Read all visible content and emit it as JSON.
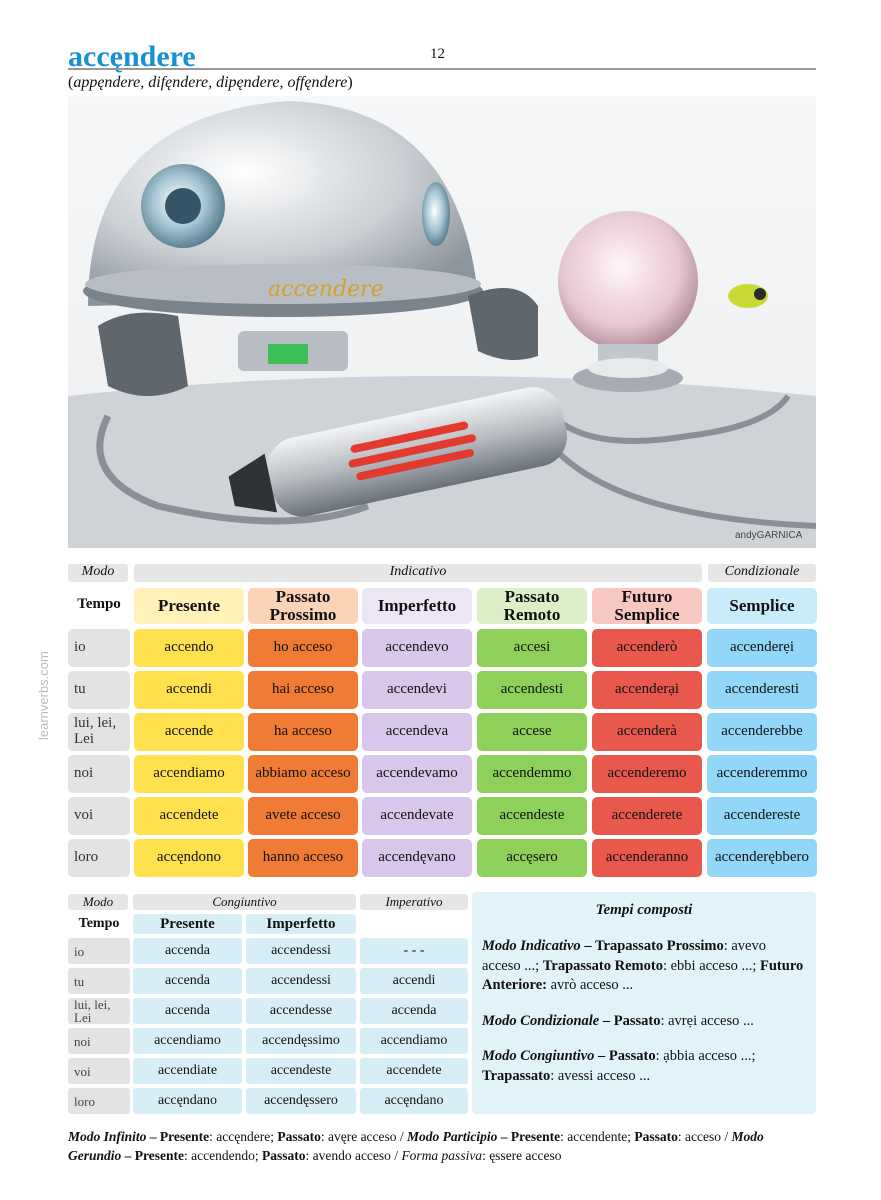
{
  "header": {
    "title": "accęndere",
    "page_number": "12",
    "related_prefix": "(",
    "related_verbs": "appęndere, difęndere, dipęndere, offęndere",
    "related_suffix": ")"
  },
  "illustration": {
    "caption": "accendere",
    "credit": "andyGARNICA"
  },
  "side_logo": "learnverbs.com",
  "main_table": {
    "modo_label": "Modo",
    "tempo_label": "Tempo",
    "indicativo_label": "Indicativo",
    "condizionale_label": "Condizionale",
    "columns": [
      "Presente",
      "Passato\nProssimo",
      "Imperfetto",
      "Passato\nRemoto",
      "Futuro\nSemplice",
      "Semplice"
    ],
    "pronouns": [
      "io",
      "tu",
      "lui, lei,\nLei",
      "noi",
      "voi",
      "loro"
    ],
    "rows": [
      [
        "accendo",
        "ho acceso",
        "accendevo",
        "accesi",
        "accenderò",
        "accenderẹi"
      ],
      [
        "accendi",
        "hai acceso",
        "accendevi",
        "accendesti",
        "accenderại",
        "accenderesti"
      ],
      [
        "accende",
        "ha acceso",
        "accendeva",
        "accese",
        "accenderà",
        "accenderebbe"
      ],
      [
        "accendiamo",
        "abbiamo acceso",
        "accendevamo",
        "accendemmo",
        "accenderemo",
        "accenderemmo"
      ],
      [
        "accendete",
        "avete acceso",
        "accendevate",
        "accendeste",
        "accenderete",
        "accendereste"
      ],
      [
        "accęndono",
        "hanno acceso",
        "accendęvano",
        "accęsero",
        "accenderanno",
        "accenderębbero"
      ]
    ]
  },
  "sub_table": {
    "modo_label": "Modo",
    "tempo_label": "Tempo",
    "congiuntivo_label": "Congiuntivo",
    "imperativo_label": "Imperativo",
    "columns": [
      "Presente",
      "Imperfetto"
    ],
    "pronouns": [
      "io",
      "tu",
      "lui, lei,\nLei",
      "noi",
      "voi",
      "loro"
    ],
    "rows": [
      [
        "accenda",
        "accendessi",
        "- - -"
      ],
      [
        "accenda",
        "accendessi",
        "accendi"
      ],
      [
        "accenda",
        "accendesse",
        "accenda"
      ],
      [
        "accendiamo",
        "accendęssimo",
        "accendiamo"
      ],
      [
        "accendiate",
        "accendeste",
        "accendete"
      ],
      [
        "accęndano",
        "accendęssero",
        "accęndano"
      ]
    ]
  },
  "tempi_composti": {
    "title": "Tempi composti",
    "ind_mode": "Modo Indicativo",
    "ind_t1": "Trapassato Prossimo",
    "ind_v1": ": avevo acceso ...; ",
    "ind_t2": "Trapassato Remoto",
    "ind_v2": ": ebbi acceso ...;",
    "ind_t3": "Futuro Anteriore:",
    "ind_v3": " avrò acceso ...",
    "cond_mode": "Modo Condizionale",
    "cond_t1": "Passato",
    "cond_v1": ": avrẹi acceso ...",
    "cong_mode": "Modo Congiuntivo",
    "cong_t1": "Passato",
    "cong_v1": ": ạbbia acceso ...;",
    "cong_t2": "Trapassato",
    "cong_v2": ": avessi acceso ..."
  },
  "footer": {
    "inf_mode": "Modo Infinito",
    "inf_pres_label": "Presente",
    "inf_pres": ": accęndere; ",
    "inf_pass_label": "Passato",
    "inf_pass": ": avęre acceso / ",
    "part_mode": "Modo Participio",
    "part_pres_label": "Presente",
    "part_pres": ": accendente; ",
    "part_pass_label": "Passato",
    "part_pass": ": acceso / ",
    "ger_mode": "Modo Gerundio",
    "ger_pres_label": "Presente",
    "ger_pres": ": accendendo; ",
    "ger_pass_label": "Passato",
    "ger_pass": ": avendo acceso / ",
    "passive_label": "Forma passiva",
    "passive": ": ęssere acceso"
  },
  "colors": {
    "title": "#1a8fd6",
    "presente": "#ffe14f",
    "passato_prossimo": "#f07b34",
    "imperfetto": "#d8c7ea",
    "passato_remoto": "#8ed05a",
    "futuro": "#e8584d",
    "condizionale": "#92d7f7"
  }
}
